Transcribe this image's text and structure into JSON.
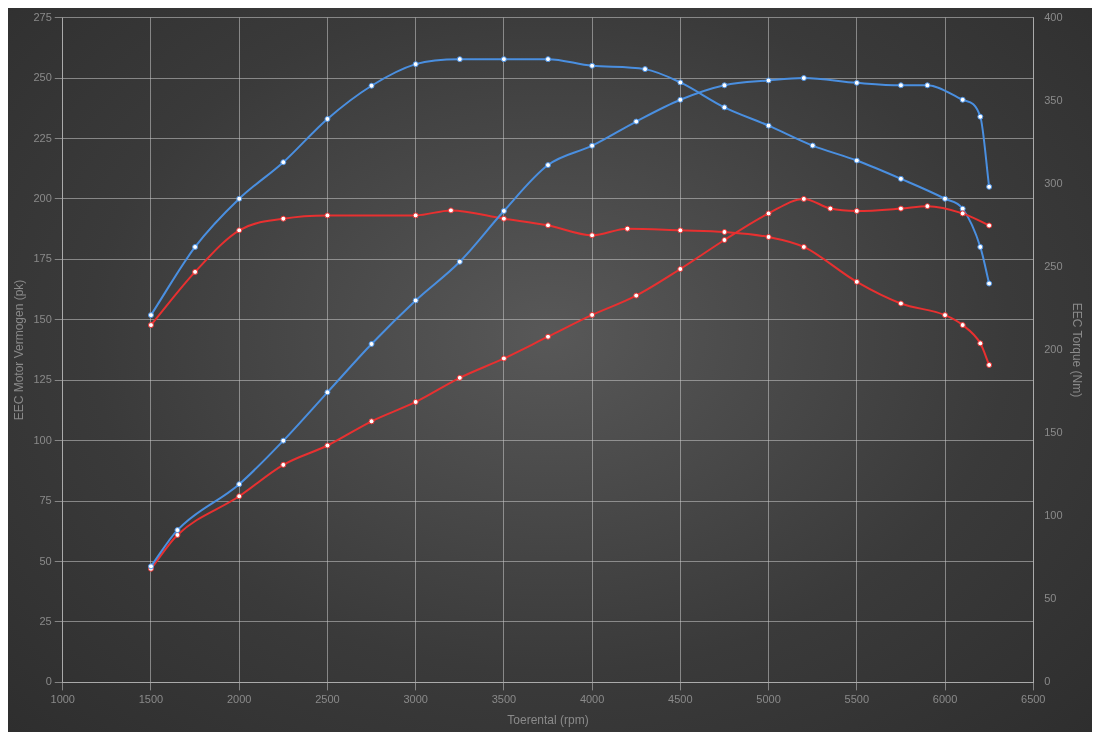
{
  "chart_data": {
    "type": "line",
    "xlabel": "Toerental (rpm)",
    "ylabel": "EEC Motor Vermogen (pk)",
    "y2label": "EEC Torque (Nm)",
    "xlim": [
      1000,
      6500
    ],
    "xticks": [
      1000,
      1500,
      2000,
      2500,
      3000,
      3500,
      4000,
      4500,
      5000,
      5500,
      6000,
      6500
    ],
    "ylim": [
      0,
      275
    ],
    "yticks": [
      0,
      25,
      50,
      75,
      100,
      125,
      150,
      175,
      200,
      225,
      250,
      275
    ],
    "y2lim": [
      0,
      400
    ],
    "y2ticks": [
      0,
      50,
      100,
      150,
      200,
      250,
      300,
      350,
      400
    ],
    "grid": true,
    "legend": false,
    "marker": "circle",
    "line_style": "solid",
    "series": [
      {
        "color": "#4a8fe0",
        "x": [
          1500,
          1650,
          2000,
          2250,
          2500,
          2750,
          3000,
          3250,
          3500,
          3750,
          4000,
          4250,
          4500,
          4750,
          5000,
          5200,
          5500,
          5750,
          5900,
          6100,
          6200,
          6250
        ],
        "values": [
          48,
          63,
          82,
          100,
          120,
          140,
          158,
          174,
          195,
          214,
          222,
          232,
          241,
          247,
          249,
          250,
          248,
          247,
          247,
          241,
          234,
          205
        ]
      },
      {
        "color": "#e83030",
        "x": [
          1500,
          1650,
          2000,
          2250,
          2500,
          2750,
          3000,
          3250,
          3500,
          3750,
          4000,
          4250,
          4500,
          4750,
          5000,
          5200,
          5350,
          5500,
          5750,
          5900,
          6100,
          6250
        ],
        "values": [
          47,
          61,
          77,
          90,
          98,
          108,
          116,
          126,
          134,
          143,
          152,
          160,
          171,
          183,
          194,
          200,
          196,
          195,
          196,
          197,
          194,
          189
        ]
      },
      {
        "color": "#4a8fe0",
        "axis": "y2",
        "x": [
          1500,
          1750,
          2000,
          2250,
          2500,
          2750,
          3000,
          3250,
          3500,
          3750,
          4000,
          4300,
          4500,
          4750,
          5000,
          5250,
          5500,
          5750,
          6000,
          6100,
          6200,
          6250
        ],
        "values": [
          221,
          262,
          291,
          313,
          339,
          359,
          372,
          375,
          375,
          375,
          371,
          369,
          361,
          346,
          335,
          323,
          314,
          303,
          291,
          285,
          262,
          240
        ]
      },
      {
        "color": "#e83030",
        "axis": "y2",
        "x": [
          1500,
          1750,
          2000,
          2250,
          2500,
          3000,
          3200,
          3500,
          3750,
          4000,
          4200,
          4500,
          4750,
          5000,
          5200,
          5500,
          5750,
          6000,
          6100,
          6200,
          6250
        ],
        "values": [
          215,
          247,
          272,
          279,
          281,
          281,
          284,
          279,
          275,
          269,
          273,
          272,
          271,
          268,
          262,
          241,
          228,
          221,
          215,
          204,
          191
        ]
      }
    ]
  }
}
